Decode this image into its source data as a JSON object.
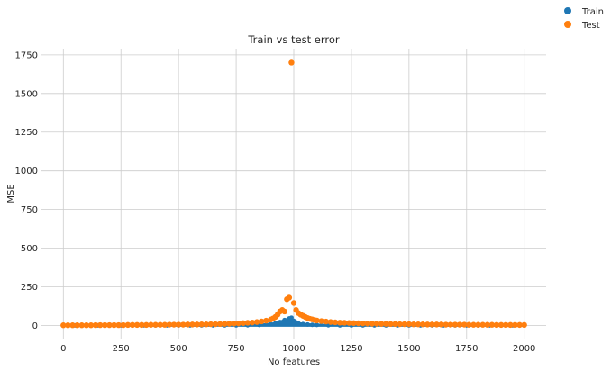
{
  "chart_data": {
    "type": "scatter",
    "title": "Train vs test error",
    "xlabel": "No features",
    "ylabel": "MSE",
    "xlim": [
      -95,
      2095
    ],
    "ylim": [
      -85,
      1790
    ],
    "xticks": [
      0,
      250,
      500,
      750,
      1000,
      1250,
      1500,
      1750,
      2000
    ],
    "yticks": [
      0,
      250,
      500,
      750,
      1000,
      1250,
      1500,
      1750
    ],
    "grid": true,
    "legend": {
      "placement": "top-right-outside"
    },
    "colors": {
      "train": "#1f77b4",
      "test": "#ff7f0e"
    },
    "series": [
      {
        "name": "Train",
        "color": "#1f77b4",
        "x": [
          0,
          50,
          100,
          150,
          200,
          250,
          300,
          350,
          400,
          450,
          500,
          550,
          600,
          650,
          700,
          750,
          800,
          850,
          900,
          920,
          940,
          960,
          980,
          990,
          1000,
          1010,
          1020,
          1040,
          1060,
          1080,
          1100,
          1150,
          1200,
          1250,
          1300,
          1350,
          1400,
          1450,
          1500,
          1550,
          1600,
          1650,
          1700,
          1750,
          1800,
          1850,
          1900,
          1950,
          2000
        ],
        "values": [
          0,
          0,
          0,
          0,
          0,
          0,
          0,
          0,
          0,
          0,
          0,
          0,
          0,
          0,
          0,
          0,
          1,
          3,
          8,
          14,
          22,
          35,
          45,
          50,
          30,
          20,
          14,
          9,
          6,
          4,
          3,
          1,
          0,
          0,
          0,
          0,
          0,
          0,
          0,
          0,
          0,
          0,
          0,
          0,
          0,
          0,
          0,
          0,
          0
        ]
      },
      {
        "name": "Test",
        "color": "#ff7f0e",
        "x": [
          0,
          20,
          40,
          60,
          80,
          100,
          120,
          140,
          160,
          180,
          200,
          220,
          240,
          260,
          280,
          300,
          320,
          340,
          360,
          380,
          400,
          420,
          440,
          460,
          480,
          500,
          520,
          540,
          560,
          580,
          600,
          620,
          640,
          660,
          680,
          700,
          720,
          740,
          760,
          780,
          800,
          820,
          840,
          860,
          880,
          900,
          910,
          920,
          930,
          940,
          950,
          960,
          970,
          980,
          990,
          1000,
          1010,
          1020,
          1030,
          1040,
          1050,
          1060,
          1070,
          1080,
          1090,
          1100,
          1120,
          1140,
          1160,
          1180,
          1200,
          1220,
          1240,
          1260,
          1280,
          1300,
          1320,
          1340,
          1360,
          1380,
          1400,
          1420,
          1440,
          1460,
          1480,
          1500,
          1520,
          1540,
          1560,
          1580,
          1600,
          1620,
          1640,
          1660,
          1680,
          1700,
          1720,
          1740,
          1760,
          1780,
          1800,
          1820,
          1840,
          1860,
          1880,
          1900,
          1920,
          1940,
          1960,
          1980,
          2000
        ],
        "values": [
          1,
          1,
          1,
          1,
          1,
          1,
          1,
          2,
          2,
          2,
          2,
          2,
          2,
          2,
          3,
          3,
          3,
          3,
          3,
          4,
          4,
          4,
          4,
          5,
          5,
          5,
          5,
          6,
          6,
          6,
          7,
          7,
          8,
          8,
          9,
          10,
          11,
          12,
          13,
          15,
          17,
          19,
          22,
          26,
          31,
          38,
          45,
          55,
          70,
          90,
          100,
          90,
          170,
          180,
          1700,
          145,
          100,
          80,
          70,
          62,
          55,
          48,
          43,
          39,
          35,
          32,
          28,
          25,
          22,
          20,
          18,
          17,
          16,
          15,
          14,
          13,
          12,
          11,
          11,
          10,
          10,
          9,
          9,
          8,
          8,
          8,
          7,
          7,
          7,
          6,
          6,
          6,
          6,
          5,
          5,
          5,
          5,
          5,
          4,
          4,
          4,
          4,
          4,
          4,
          3,
          3,
          3,
          3,
          3,
          3,
          3
        ]
      }
    ]
  }
}
